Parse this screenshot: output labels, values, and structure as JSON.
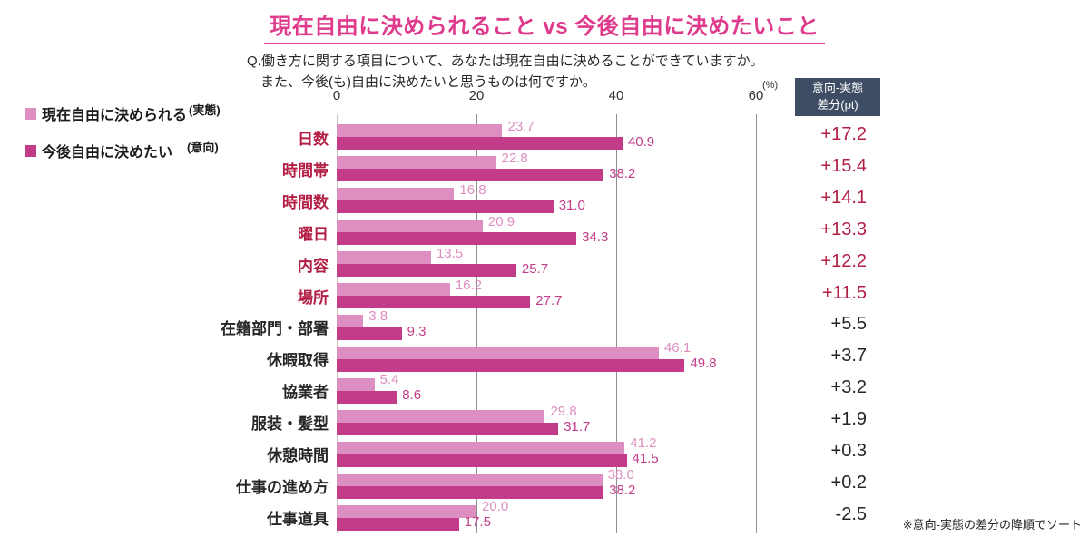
{
  "title": "現在自由に決められること  vs 今後自由に決めたいこと",
  "question": {
    "line1": "Q.働き方に関する項目について、あなたは現在自由に決めることができていますか。",
    "line2": "また、今後(も)自由に決めたいと思うものは何ですか。"
  },
  "legend": {
    "actual": {
      "label": "現在自由に決められる",
      "suffix": "(実態)"
    },
    "intent": {
      "label": "今後自由に決めたい",
      "suffix": "(意向)"
    }
  },
  "diff_header": {
    "line1": "意向-実態",
    "line2": "差分(pt)"
  },
  "axis": {
    "ticks": [
      {
        "value": 0,
        "label": "0"
      },
      {
        "value": 20,
        "label": "20"
      },
      {
        "value": 40,
        "label": "40"
      },
      {
        "value": 60,
        "label": "60"
      }
    ],
    "unit": "(%)",
    "max": 60
  },
  "footnote": "※意向-実態の差分の降順でソート",
  "colors": {
    "title_pink": "#e03a8c",
    "bar_actual": "#dc8fc0",
    "bar_intent": "#c33c8a",
    "highlight_red": "#b31e44",
    "text_dark": "#262626",
    "diff_header_bg": "#3e4d63",
    "gridline": "#8f8f8f",
    "axis_line": "#cfc4ca"
  },
  "chart_data": {
    "type": "bar",
    "orientation": "horizontal",
    "title": "現在自由に決められること vs 今後自由に決めたいこと",
    "xlim": [
      0,
      60
    ],
    "x_unit": "%",
    "grid_ticks": [
      0,
      20,
      40,
      60
    ],
    "legend_position": "top-left",
    "sort_note": "意向-実態の差分の降順でソート",
    "categories": [
      "日数",
      "時間帯",
      "時間数",
      "曜日",
      "内容",
      "場所",
      "在籍部門・部署",
      "休暇取得",
      "協業者",
      "服装・髪型",
      "休憩時間",
      "仕事の進め方",
      "仕事道具"
    ],
    "series": [
      {
        "name": "現在自由に決められる(実態)",
        "values": [
          23.7,
          22.8,
          16.8,
          20.9,
          13.5,
          16.2,
          3.8,
          46.1,
          5.4,
          29.8,
          41.2,
          38.0,
          20.0
        ]
      },
      {
        "name": "今後自由に決めたい(意向)",
        "values": [
          40.9,
          38.2,
          31.0,
          34.3,
          25.7,
          27.7,
          9.3,
          49.8,
          8.6,
          31.7,
          41.5,
          38.2,
          17.5
        ]
      }
    ],
    "rows": [
      {
        "category": "日数",
        "actual": 23.7,
        "actual_label": "23.7",
        "intent": 40.9,
        "intent_label": "40.9",
        "diff": "+17.2",
        "highlight": true
      },
      {
        "category": "時間帯",
        "actual": 22.8,
        "actual_label": "22.8",
        "intent": 38.2,
        "intent_label": "38.2",
        "diff": "+15.4",
        "highlight": true
      },
      {
        "category": "時間数",
        "actual": 16.8,
        "actual_label": "16.8",
        "intent": 31.0,
        "intent_label": "31.0",
        "diff": "+14.1",
        "highlight": true
      },
      {
        "category": "曜日",
        "actual": 20.9,
        "actual_label": "20.9",
        "intent": 34.3,
        "intent_label": "34.3",
        "diff": "+13.3",
        "highlight": true
      },
      {
        "category": "内容",
        "actual": 13.5,
        "actual_label": "13.5",
        "intent": 25.7,
        "intent_label": "25.7",
        "diff": "+12.2",
        "highlight": true
      },
      {
        "category": "場所",
        "actual": 16.2,
        "actual_label": "16.2",
        "intent": 27.7,
        "intent_label": "27.7",
        "diff": "+11.5",
        "highlight": true
      },
      {
        "category": "在籍部門・部署",
        "actual": 3.8,
        "actual_label": "3.8",
        "intent": 9.3,
        "intent_label": "9.3",
        "diff": "+5.5",
        "highlight": false
      },
      {
        "category": "休暇取得",
        "actual": 46.1,
        "actual_label": "46.1",
        "intent": 49.8,
        "intent_label": "49.8",
        "diff": "+3.7",
        "highlight": false
      },
      {
        "category": "協業者",
        "actual": 5.4,
        "actual_label": "5.4",
        "intent": 8.6,
        "intent_label": "8.6",
        "diff": "+3.2",
        "highlight": false
      },
      {
        "category": "服装・髪型",
        "actual": 29.8,
        "actual_label": "29.8",
        "intent": 31.7,
        "intent_label": "31.7",
        "diff": "+1.9",
        "highlight": false
      },
      {
        "category": "休憩時間",
        "actual": 41.2,
        "actual_label": "41.2",
        "intent": 41.5,
        "intent_label": "41.5",
        "diff": "+0.3",
        "highlight": false
      },
      {
        "category": "仕事の進め方",
        "actual": 38.0,
        "actual_label": "38.0",
        "intent": 38.2,
        "intent_label": "38.2",
        "diff": "+0.2",
        "highlight": false
      },
      {
        "category": "仕事道具",
        "actual": 20.0,
        "actual_label": "20.0",
        "intent": 17.5,
        "intent_label": "17.5",
        "diff": "-2.5",
        "highlight": false
      }
    ]
  }
}
